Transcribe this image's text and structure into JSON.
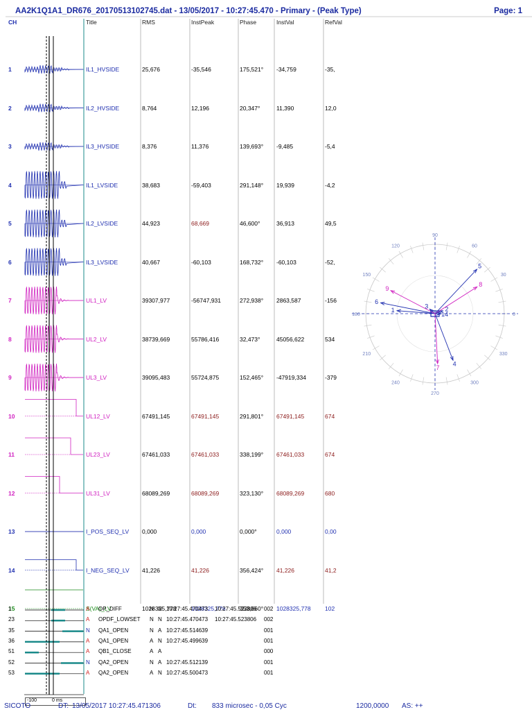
{
  "header": {
    "title": "AA2K1Q1A1_DR676_20170513102745.dat - 13/05/2017 - 10:27:45.470 - Primary - (Peak Type)",
    "page": "Page: 1"
  },
  "columns": [
    "CH",
    "Title",
    "RMS",
    "InstPeak",
    "Phase",
    "InstVal",
    "RefVal"
  ],
  "channels": [
    {
      "ch": "1",
      "title": "IL1_HVSIDE",
      "rms": "25,676",
      "peak": "-35,546",
      "phase": "175,521°",
      "inst": "-34,759",
      "ref": "-35,",
      "color": "#2030b0",
      "peak_color": "#000000",
      "inst_color": "#000000",
      "ref_color": "#000000"
    },
    {
      "ch": "2",
      "title": "IL2_HVSIDE",
      "rms": "8,764",
      "peak": "12,196",
      "phase": "20,347°",
      "inst": "11,390",
      "ref": "12,0",
      "color": "#2030b0",
      "peak_color": "#000000",
      "inst_color": "#000000",
      "ref_color": "#000000"
    },
    {
      "ch": "3",
      "title": "IL3_HVSIDE",
      "rms": "8,376",
      "peak": "11,376",
      "phase": "139,693°",
      "inst": "-9,485",
      "ref": "-5,4",
      "color": "#2030b0",
      "peak_color": "#000000",
      "inst_color": "#000000",
      "ref_color": "#000000"
    },
    {
      "ch": "4",
      "title": "IL1_LVSIDE",
      "rms": "38,683",
      "peak": "-59,403",
      "phase": "291,148°",
      "inst": "19,939",
      "ref": "-4,2",
      "color": "#2030b0",
      "peak_color": "#000000",
      "inst_color": "#000000",
      "ref_color": "#000000"
    },
    {
      "ch": "5",
      "title": "IL2_LVSIDE",
      "rms": "44,923",
      "peak": "68,669",
      "phase": "46,600°",
      "inst": "36,913",
      "ref": "49,5",
      "color": "#2030b0",
      "peak_color": "#8b1a1a",
      "inst_color": "#000000",
      "ref_color": "#000000"
    },
    {
      "ch": "6",
      "title": "IL3_LVSIDE",
      "rms": "40,667",
      "peak": "-60,103",
      "phase": "168,732°",
      "inst": "-60,103",
      "ref": "-52,",
      "color": "#2030b0",
      "peak_color": "#000000",
      "inst_color": "#000000",
      "ref_color": "#000000"
    },
    {
      "ch": "7",
      "title": "UL1_LV",
      "rms": "39307,977",
      "peak": "-56747,931",
      "phase": "272,938°",
      "inst": "2863,587",
      "ref": "-156",
      "color": "#d020c0",
      "peak_color": "#000000",
      "inst_color": "#000000",
      "ref_color": "#000000"
    },
    {
      "ch": "8",
      "title": "UL2_LV",
      "rms": "38739,669",
      "peak": "55786,416",
      "phase": "32,473°",
      "inst": "45056,622",
      "ref": "534",
      "color": "#d020c0",
      "peak_color": "#000000",
      "inst_color": "#000000",
      "ref_color": "#000000"
    },
    {
      "ch": "9",
      "title": "UL3_LV",
      "rms": "39095,483",
      "peak": "55724,875",
      "phase": "152,465°",
      "inst": "-47919,334",
      "ref": "-379",
      "color": "#d020c0",
      "peak_color": "#000000",
      "inst_color": "#000000",
      "ref_color": "#000000"
    },
    {
      "ch": "10",
      "title": "UL12_LV",
      "rms": "67491,145",
      "peak": "67491,145",
      "phase": "291,801°",
      "inst": "67491,145",
      "ref": "674",
      "color": "#d020c0",
      "peak_color": "#8b1a1a",
      "inst_color": "#8b1a1a",
      "ref_color": "#8b1a1a"
    },
    {
      "ch": "11",
      "title": "UL23_LV",
      "rms": "67461,033",
      "peak": "67461,033",
      "phase": "338,199°",
      "inst": "67461,033",
      "ref": "674",
      "color": "#d020c0",
      "peak_color": "#8b1a1a",
      "inst_color": "#8b1a1a",
      "ref_color": "#8b1a1a"
    },
    {
      "ch": "12",
      "title": "UL31_LV",
      "rms": "68089,269",
      "peak": "68089,269",
      "phase": "323,130°",
      "inst": "68089,269",
      "ref": "680",
      "color": "#d020c0",
      "peak_color": "#8b1a1a",
      "inst_color": "#8b1a1a",
      "ref_color": "#8b1a1a"
    },
    {
      "ch": "13",
      "title": "I_POS_SEQ_LV",
      "rms": "0,000",
      "peak": "0,000",
      "phase": "0,000°",
      "inst": "0,000",
      "ref": "0,00",
      "color": "#2030b0",
      "peak_color": "#2030b0",
      "inst_color": "#2030b0",
      "ref_color": "#2030b0"
    },
    {
      "ch": "14",
      "title": "I_NEG_SEQ_LV",
      "rms": "41,226",
      "peak": "41,226",
      "phase": "356,424°",
      "inst": "41,226",
      "ref": "41,2",
      "color": "#2030b0",
      "peak_color": "#8b1a1a",
      "inst_color": "#8b1a1a",
      "ref_color": "#8b1a1a"
    },
    {
      "ch": "15",
      "title": "S(VA)_LV",
      "rms": "1028325,778",
      "peak": "1028325,778",
      "phase": "353,660°",
      "inst": "1028325,778",
      "ref": "102",
      "color": "#1a8a1a",
      "peak_color": "#2030b0",
      "inst_color": "#2030b0",
      "ref_color": "#2030b0"
    }
  ],
  "digitals": [
    {
      "num": "1",
      "flag": "A",
      "name": "OP_DIFF",
      "s1": "N",
      "s2": "N",
      "t1": "10:27:45.470473",
      "t2": "10:27:45.523806",
      "code": "002",
      "flag_color": "#d02020"
    },
    {
      "num": "23",
      "flag": "A",
      "name": "OPDF_LOWSET",
      "s1": "N",
      "s2": "N",
      "t1": "10:27:45.470473",
      "t2": "10:27:45.523806",
      "code": "002",
      "flag_color": "#d02020"
    },
    {
      "num": "35",
      "flag": "N",
      "name": "QA1_OPEN",
      "s1": "N",
      "s2": "A",
      "t1": "10:27:45.514639",
      "t2": "",
      "code": "001",
      "flag_color": "#2030b0"
    },
    {
      "num": "36",
      "flag": "A",
      "name": "QA1_OPEN",
      "s1": "A",
      "s2": "N",
      "t1": "10:27:45.499639",
      "t2": "",
      "code": "001",
      "flag_color": "#d02020"
    },
    {
      "num": "51",
      "flag": "A",
      "name": "QB1_CLOSE",
      "s1": "A",
      "s2": "A",
      "t1": "",
      "t2": "",
      "code": "000",
      "flag_color": "#d02020"
    },
    {
      "num": "52",
      "flag": "N",
      "name": "QA2_OPEN",
      "s1": "N",
      "s2": "A",
      "t1": "10:27:45.512139",
      "t2": "",
      "code": "001",
      "flag_color": "#2030b0"
    },
    {
      "num": "53",
      "flag": "A",
      "name": "QA2_OPEN",
      "s1": "A",
      "s2": "N",
      "t1": "10:27:45.500473",
      "t2": "",
      "code": "001",
      "flag_color": "#d02020"
    }
  ],
  "timescale": {
    "left": "-100",
    "right": "0 ms"
  },
  "polar": {
    "angle_labels": [
      "90",
      "60",
      "30",
      "0",
      "330",
      "300",
      "270",
      "240",
      "210",
      "180",
      "150",
      "120"
    ],
    "vectors": [
      {
        "label": "1",
        "angle": 175.521,
        "mag": 0.55,
        "color": "#2030b0"
      },
      {
        "label": "2",
        "angle": 20.347,
        "mag": 0.12,
        "color": "#2030b0"
      },
      {
        "label": "3",
        "angle": 139.693,
        "mag": 0.1,
        "color": "#2030b0"
      },
      {
        "label": "4",
        "angle": 291.148,
        "mag": 0.72,
        "color": "#2030b0"
      },
      {
        "label": "5",
        "angle": 46.6,
        "mag": 0.88,
        "color": "#2030b0"
      },
      {
        "label": "6",
        "angle": 168.732,
        "mag": 0.8,
        "color": "#2030b0"
      },
      {
        "label": "7",
        "angle": 272.938,
        "mag": 0.72,
        "color": "#d020c0"
      },
      {
        "label": "8",
        "angle": 32.473,
        "mag": 0.72,
        "color": "#d020c0"
      },
      {
        "label": "9",
        "angle": 152.465,
        "mag": 0.72,
        "color": "#d020c0"
      },
      {
        "label": "14",
        "angle": 356.424,
        "mag": 0.08,
        "color": "#2030b0"
      }
    ]
  },
  "footer": {
    "company": "SICOTO",
    "dt_label": "DT:",
    "dt_value": "13/05/2017 10:27:45.471306",
    "delta_label": "Dt:",
    "delta_value": "833 microsec  -  0,05 Cyc",
    "freq": "1200,0000",
    "as": "AS: ++"
  }
}
